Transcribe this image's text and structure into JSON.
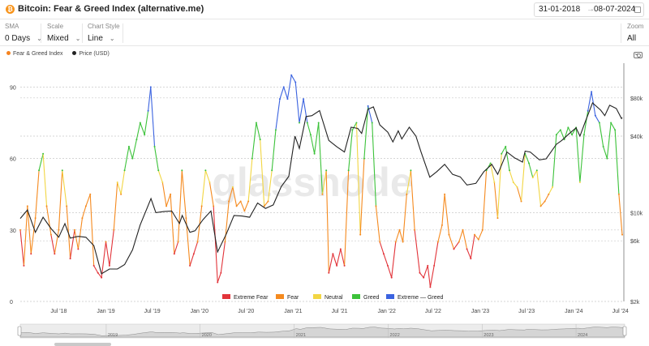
{
  "header": {
    "logo_glyph": "₿",
    "title": "Bitcoin: Fear & Greed Index (alternative.me)",
    "date_from": "31-01-2018",
    "date_sep": "→",
    "date_to": "08-07-2024"
  },
  "controls": {
    "sma": {
      "label": "SMA",
      "value": "0 Days"
    },
    "scale": {
      "label": "Scale",
      "value": "Mixed"
    },
    "chart_style": {
      "label": "Chart Style",
      "value": "Line"
    },
    "zoom": {
      "label": "Zoom",
      "value": "All"
    }
  },
  "watermark": "glassnode",
  "icons": {
    "camera": "camera-icon",
    "calendar": "calendar-icon",
    "chevron": "chevron-down-icon"
  },
  "chart_data": {
    "type": "line",
    "x_range": [
      "2018-02-01",
      "2024-07-08"
    ],
    "x_tick_labels": [
      "Jul '18",
      "Jan '19",
      "Jul '19",
      "Jan '20",
      "Jul '20",
      "Jan '21",
      "Jul '21",
      "Jan '22",
      "Jul '22",
      "Jan '23",
      "Jul '23",
      "Jan '24",
      "Jul '24"
    ],
    "y_left": {
      "ticks": [
        0,
        30,
        60,
        90
      ],
      "range": [
        0,
        100
      ]
    },
    "y_right": {
      "scale": "log",
      "ticks": [
        "$2k",
        "$6k",
        "$10k",
        "$40k",
        "$80k"
      ],
      "tick_values": [
        2000,
        6000,
        10000,
        40000,
        80000
      ],
      "range": [
        2000,
        150000
      ]
    },
    "top_legend": [
      {
        "name": "Fear & Greed Index",
        "color": "#f5831f"
      },
      {
        "name": "Price (USD)",
        "color": "#222222"
      }
    ],
    "zones": [
      {
        "name": "Extreme Fear",
        "min": 0,
        "max": 25,
        "color": "#e2343a"
      },
      {
        "name": "Fear",
        "min": 25,
        "max": 46,
        "color": "#f58a1f"
      },
      {
        "name": "Neutral",
        "min": 46,
        "max": 55,
        "color": "#f2d643"
      },
      {
        "name": "Greed",
        "min": 55,
        "max": 76,
        "color": "#3cc23a"
      },
      {
        "name": "Extreme — Greed",
        "min": 76,
        "max": 100,
        "color": "#3b63e0"
      }
    ],
    "navigator_years": [
      "2019",
      "2020",
      "2021",
      "2022",
      "2023",
      "2024"
    ],
    "series": [
      {
        "name": "Fear & Greed Index",
        "points": [
          [
            "2018-02-01",
            30
          ],
          [
            "2018-02-15",
            15
          ],
          [
            "2018-03-01",
            40
          ],
          [
            "2018-03-15",
            20
          ],
          [
            "2018-04-01",
            35
          ],
          [
            "2018-04-15",
            55
          ],
          [
            "2018-05-01",
            62
          ],
          [
            "2018-05-15",
            40
          ],
          [
            "2018-06-01",
            28
          ],
          [
            "2018-06-15",
            20
          ],
          [
            "2018-07-01",
            30
          ],
          [
            "2018-07-15",
            55
          ],
          [
            "2018-08-01",
            40
          ],
          [
            "2018-08-15",
            18
          ],
          [
            "2018-09-01",
            30
          ],
          [
            "2018-09-15",
            22
          ],
          [
            "2018-10-01",
            35
          ],
          [
            "2018-10-15",
            40
          ],
          [
            "2018-11-01",
            45
          ],
          [
            "2018-11-15",
            15
          ],
          [
            "2018-12-01",
            12
          ],
          [
            "2018-12-15",
            10
          ],
          [
            "2019-01-01",
            25
          ],
          [
            "2019-01-15",
            15
          ],
          [
            "2019-02-01",
            30
          ],
          [
            "2019-02-15",
            50
          ],
          [
            "2019-03-01",
            45
          ],
          [
            "2019-03-15",
            55
          ],
          [
            "2019-04-01",
            65
          ],
          [
            "2019-04-15",
            60
          ],
          [
            "2019-05-01",
            68
          ],
          [
            "2019-05-15",
            75
          ],
          [
            "2019-06-01",
            70
          ],
          [
            "2019-06-15",
            80
          ],
          [
            "2019-06-25",
            90
          ],
          [
            "2019-07-10",
            65
          ],
          [
            "2019-07-25",
            55
          ],
          [
            "2019-08-10",
            50
          ],
          [
            "2019-08-25",
            40
          ],
          [
            "2019-09-10",
            45
          ],
          [
            "2019-09-25",
            20
          ],
          [
            "2019-10-10",
            25
          ],
          [
            "2019-10-25",
            55
          ],
          [
            "2019-11-10",
            35
          ],
          [
            "2019-11-25",
            15
          ],
          [
            "2019-12-10",
            20
          ],
          [
            "2019-12-25",
            25
          ],
          [
            "2020-01-10",
            40
          ],
          [
            "2020-01-25",
            55
          ],
          [
            "2020-02-10",
            50
          ],
          [
            "2020-02-25",
            40
          ],
          [
            "2020-03-12",
            8
          ],
          [
            "2020-03-25",
            12
          ],
          [
            "2020-04-10",
            25
          ],
          [
            "2020-04-25",
            42
          ],
          [
            "2020-05-10",
            48
          ],
          [
            "2020-05-25",
            40
          ],
          [
            "2020-06-10",
            42
          ],
          [
            "2020-06-25",
            38
          ],
          [
            "2020-07-10",
            42
          ],
          [
            "2020-07-25",
            60
          ],
          [
            "2020-08-10",
            75
          ],
          [
            "2020-08-25",
            68
          ],
          [
            "2020-09-10",
            40
          ],
          [
            "2020-09-25",
            42
          ],
          [
            "2020-10-10",
            55
          ],
          [
            "2020-10-25",
            72
          ],
          [
            "2020-11-10",
            85
          ],
          [
            "2020-11-25",
            90
          ],
          [
            "2020-12-10",
            85
          ],
          [
            "2020-12-25",
            95
          ],
          [
            "2021-01-10",
            92
          ],
          [
            "2021-01-25",
            75
          ],
          [
            "2021-02-10",
            85
          ],
          [
            "2021-02-25",
            75
          ],
          [
            "2021-03-10",
            70
          ],
          [
            "2021-03-25",
            62
          ],
          [
            "2021-04-10",
            75
          ],
          [
            "2021-04-25",
            45
          ],
          [
            "2021-05-10",
            55
          ],
          [
            "2021-05-20",
            12
          ],
          [
            "2021-06-05",
            20
          ],
          [
            "2021-06-20",
            15
          ],
          [
            "2021-07-05",
            22
          ],
          [
            "2021-07-20",
            15
          ],
          [
            "2021-08-05",
            55
          ],
          [
            "2021-08-20",
            72
          ],
          [
            "2021-09-05",
            75
          ],
          [
            "2021-09-20",
            28
          ],
          [
            "2021-10-05",
            60
          ],
          [
            "2021-10-20",
            82
          ],
          [
            "2021-11-05",
            75
          ],
          [
            "2021-11-20",
            40
          ],
          [
            "2021-12-05",
            25
          ],
          [
            "2021-12-20",
            20
          ],
          [
            "2022-01-05",
            15
          ],
          [
            "2022-01-20",
            10
          ],
          [
            "2022-02-05",
            25
          ],
          [
            "2022-02-20",
            30
          ],
          [
            "2022-03-05",
            25
          ],
          [
            "2022-03-20",
            45
          ],
          [
            "2022-04-05",
            55
          ],
          [
            "2022-04-20",
            30
          ],
          [
            "2022-05-10",
            12
          ],
          [
            "2022-05-25",
            10
          ],
          [
            "2022-06-10",
            15
          ],
          [
            "2022-06-20",
            6
          ],
          [
            "2022-07-05",
            15
          ],
          [
            "2022-07-20",
            25
          ],
          [
            "2022-08-05",
            32
          ],
          [
            "2022-08-15",
            45
          ],
          [
            "2022-09-01",
            28
          ],
          [
            "2022-09-20",
            22
          ],
          [
            "2022-10-10",
            25
          ],
          [
            "2022-10-25",
            30
          ],
          [
            "2022-11-10",
            22
          ],
          [
            "2022-11-25",
            18
          ],
          [
            "2022-12-10",
            28
          ],
          [
            "2022-12-25",
            26
          ],
          [
            "2023-01-10",
            30
          ],
          [
            "2023-01-25",
            55
          ],
          [
            "2023-02-10",
            58
          ],
          [
            "2023-02-25",
            50
          ],
          [
            "2023-03-10",
            35
          ],
          [
            "2023-03-25",
            62
          ],
          [
            "2023-04-10",
            65
          ],
          [
            "2023-04-25",
            55
          ],
          [
            "2023-05-10",
            50
          ],
          [
            "2023-05-25",
            48
          ],
          [
            "2023-06-10",
            42
          ],
          [
            "2023-06-25",
            62
          ],
          [
            "2023-07-10",
            58
          ],
          [
            "2023-07-25",
            52
          ],
          [
            "2023-08-10",
            55
          ],
          [
            "2023-08-25",
            40
          ],
          [
            "2023-09-10",
            42
          ],
          [
            "2023-09-25",
            45
          ],
          [
            "2023-10-10",
            48
          ],
          [
            "2023-10-25",
            70
          ],
          [
            "2023-11-10",
            72
          ],
          [
            "2023-11-25",
            68
          ],
          [
            "2023-12-10",
            73
          ],
          [
            "2023-12-25",
            70
          ],
          [
            "2024-01-10",
            73
          ],
          [
            "2024-01-25",
            50
          ],
          [
            "2024-02-10",
            70
          ],
          [
            "2024-02-25",
            80
          ],
          [
            "2024-03-10",
            88
          ],
          [
            "2024-03-25",
            78
          ],
          [
            "2024-04-10",
            75
          ],
          [
            "2024-04-25",
            65
          ],
          [
            "2024-05-10",
            60
          ],
          [
            "2024-05-25",
            75
          ],
          [
            "2024-06-10",
            72
          ],
          [
            "2024-06-25",
            45
          ],
          [
            "2024-07-08",
            28
          ]
        ]
      },
      {
        "name": "Price (USD)",
        "color": "#222222",
        "points": [
          [
            "2018-02-01",
            9000
          ],
          [
            "2018-03-01",
            10500
          ],
          [
            "2018-04-01",
            7000
          ],
          [
            "2018-05-01",
            9200
          ],
          [
            "2018-06-01",
            7500
          ],
          [
            "2018-07-01",
            6400
          ],
          [
            "2018-07-25",
            8200
          ],
          [
            "2018-08-15",
            6300
          ],
          [
            "2018-09-15",
            6500
          ],
          [
            "2018-10-15",
            6400
          ],
          [
            "2018-11-15",
            5500
          ],
          [
            "2018-12-15",
            3300
          ],
          [
            "2019-01-15",
            3600
          ],
          [
            "2019-02-15",
            3600
          ],
          [
            "2019-03-15",
            3900
          ],
          [
            "2019-04-15",
            5100
          ],
          [
            "2019-05-15",
            8000
          ],
          [
            "2019-06-26",
            12900
          ],
          [
            "2019-07-15",
            10000
          ],
          [
            "2019-08-15",
            10200
          ],
          [
            "2019-09-15",
            10300
          ],
          [
            "2019-10-15",
            8200
          ],
          [
            "2019-10-26",
            9500
          ],
          [
            "2019-11-25",
            7000
          ],
          [
            "2019-12-15",
            7200
          ],
          [
            "2020-01-15",
            8800
          ],
          [
            "2020-02-15",
            10300
          ],
          [
            "2020-03-12",
            4900
          ],
          [
            "2020-04-15",
            6800
          ],
          [
            "2020-05-15",
            9500
          ],
          [
            "2020-06-15",
            9400
          ],
          [
            "2020-07-15",
            9200
          ],
          [
            "2020-08-15",
            11900
          ],
          [
            "2020-09-15",
            10800
          ],
          [
            "2020-10-15",
            11500
          ],
          [
            "2020-11-15",
            16000
          ],
          [
            "2020-12-15",
            19300
          ],
          [
            "2021-01-08",
            40000
          ],
          [
            "2021-01-25",
            32000
          ],
          [
            "2021-02-20",
            57000
          ],
          [
            "2021-03-15",
            58000
          ],
          [
            "2021-04-14",
            63500
          ],
          [
            "2021-05-20",
            37000
          ],
          [
            "2021-06-20",
            33000
          ],
          [
            "2021-07-20",
            30000
          ],
          [
            "2021-08-15",
            47000
          ],
          [
            "2021-09-10",
            46000
          ],
          [
            "2021-09-25",
            42000
          ],
          [
            "2021-10-20",
            65000
          ],
          [
            "2021-11-10",
            68000
          ],
          [
            "2021-12-05",
            49000
          ],
          [
            "2022-01-05",
            43000
          ],
          [
            "2022-01-25",
            36000
          ],
          [
            "2022-02-15",
            44000
          ],
          [
            "2022-03-01",
            38000
          ],
          [
            "2022-03-30",
            47000
          ],
          [
            "2022-04-25",
            40000
          ],
          [
            "2022-05-15",
            30000
          ],
          [
            "2022-06-18",
            19000
          ],
          [
            "2022-07-15",
            21000
          ],
          [
            "2022-08-15",
            24000
          ],
          [
            "2022-09-15",
            20000
          ],
          [
            "2022-10-15",
            19100
          ],
          [
            "2022-11-10",
            16500
          ],
          [
            "2022-12-15",
            17000
          ],
          [
            "2023-01-15",
            21000
          ],
          [
            "2023-02-15",
            24000
          ],
          [
            "2023-03-10",
            20000
          ],
          [
            "2023-04-15",
            30000
          ],
          [
            "2023-05-15",
            27000
          ],
          [
            "2023-06-15",
            25000
          ],
          [
            "2023-06-25",
            30500
          ],
          [
            "2023-07-15",
            30000
          ],
          [
            "2023-08-20",
            26000
          ],
          [
            "2023-09-15",
            26500
          ],
          [
            "2023-10-25",
            34500
          ],
          [
            "2023-11-15",
            37000
          ],
          [
            "2023-12-15",
            42000
          ],
          [
            "2024-01-10",
            46500
          ],
          [
            "2024-01-25",
            40000
          ],
          [
            "2024-02-15",
            52000
          ],
          [
            "2024-03-14",
            73000
          ],
          [
            "2024-04-15",
            64000
          ],
          [
            "2024-05-01",
            58000
          ],
          [
            "2024-05-20",
            70000
          ],
          [
            "2024-06-15",
            66000
          ],
          [
            "2024-07-05",
            55000
          ],
          [
            "2024-07-08",
            56000
          ]
        ]
      }
    ]
  }
}
